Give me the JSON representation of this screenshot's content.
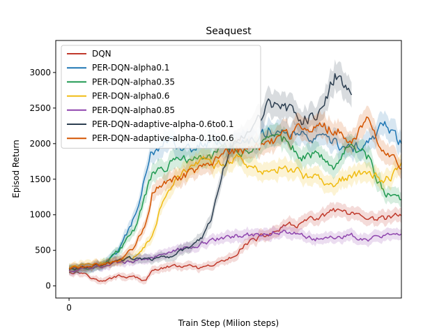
{
  "chart_data": {
    "type": "line",
    "title": "Seaquest",
    "xlabel": "Train Step (Milion steps)",
    "ylabel": "Episod Return",
    "xlim": [
      -4,
      100
    ],
    "ylim": [
      -170,
      3450
    ],
    "x_ticks": [
      0
    ],
    "x_tick_labels": [
      "0"
    ],
    "y_ticks": [
      0,
      500,
      1000,
      1500,
      2000,
      2500,
      3000
    ],
    "y_tick_labels": [
      "0",
      "500",
      "1000",
      "1500",
      "2000",
      "2500",
      "3000"
    ],
    "grid": false,
    "legend_position": "top-left",
    "shaded_band": true,
    "series": [
      {
        "name": "DQN",
        "color": "#c0392b",
        "x": [
          0,
          5,
          7,
          10,
          15,
          20,
          23,
          25,
          30,
          35,
          40,
          45,
          50,
          52,
          55,
          60,
          65,
          70,
          75,
          80,
          85,
          90,
          95,
          100
        ],
        "y": [
          200,
          180,
          110,
          60,
          140,
          120,
          60,
          220,
          270,
          280,
          240,
          320,
          420,
          560,
          640,
          720,
          830,
          880,
          950,
          1050,
          1000,
          900,
          950,
          1000
        ]
      },
      {
        "name": "PER-DQN-alpha0.1",
        "color": "#1f77b4",
        "x": [
          0,
          5,
          10,
          15,
          20,
          23,
          25,
          30,
          35,
          40,
          45,
          50,
          55,
          60,
          65,
          70,
          75,
          80,
          85,
          90,
          95,
          100
        ],
        "y": [
          250,
          260,
          280,
          500,
          1000,
          1600,
          1900,
          2100,
          1900,
          2000,
          2050,
          1950,
          2050,
          2200,
          2150,
          2100,
          2050,
          2000,
          1900,
          2000,
          2300,
          2000
        ]
      },
      {
        "name": "PER-DQN-alpha0.35",
        "color": "#1e9950",
        "x": [
          0,
          5,
          10,
          15,
          20,
          23,
          25,
          30,
          35,
          40,
          45,
          50,
          55,
          60,
          65,
          70,
          75,
          80,
          85,
          90,
          95,
          100
        ],
        "y": [
          230,
          250,
          300,
          500,
          800,
          1300,
          1550,
          1700,
          1800,
          1750,
          1900,
          1950,
          1850,
          2000,
          2050,
          1800,
          1900,
          1700,
          2000,
          1800,
          1300,
          1200
        ]
      },
      {
        "name": "PER-DQN-alpha0.6",
        "color": "#f0bb10",
        "x": [
          0,
          5,
          10,
          15,
          20,
          25,
          28,
          30,
          35,
          40,
          45,
          50,
          55,
          60,
          65,
          70,
          75,
          80,
          85,
          90,
          95,
          100
        ],
        "y": [
          260,
          300,
          330,
          350,
          420,
          700,
          1200,
          1400,
          1600,
          1750,
          1700,
          1800,
          1650,
          1600,
          1700,
          1550,
          1500,
          1450,
          1550,
          1600,
          1450,
          1700
        ]
      },
      {
        "name": "PER-DQN-alpha0.85",
        "color": "#8e44ad",
        "x": [
          0,
          5,
          10,
          15,
          20,
          25,
          30,
          35,
          40,
          45,
          50,
          55,
          60,
          65,
          70,
          75,
          80,
          85,
          90,
          95,
          100
        ],
        "y": [
          220,
          240,
          280,
          330,
          350,
          400,
          480,
          540,
          600,
          660,
          700,
          720,
          750,
          760,
          720,
          660,
          700,
          720,
          650,
          700,
          690
        ]
      },
      {
        "name": "PER-DQN-adaptive-alpha-0.6to0.1",
        "color": "#2c3e50",
        "x": [
          0,
          5,
          10,
          15,
          20,
          25,
          30,
          35,
          40,
          43,
          46,
          50,
          55,
          60,
          65,
          70,
          75,
          78,
          80,
          85
        ],
        "y": [
          230,
          260,
          300,
          350,
          400,
          380,
          420,
          500,
          680,
          1000,
          1600,
          2050,
          2200,
          2500,
          2550,
          2350,
          2400,
          2700,
          2950,
          2650
        ]
      },
      {
        "name": "PER-DQN-adaptive-alpha-0.1to0.6",
        "color": "#d35400",
        "x": [
          0,
          5,
          10,
          15,
          20,
          23,
          25,
          30,
          35,
          40,
          45,
          50,
          55,
          60,
          65,
          70,
          75,
          80,
          85,
          90,
          95,
          100
        ],
        "y": [
          240,
          270,
          300,
          350,
          550,
          900,
          1300,
          1500,
          1550,
          1650,
          1800,
          1900,
          1950,
          2000,
          2100,
          2200,
          2250,
          2200,
          2050,
          2350,
          1800,
          1700
        ]
      }
    ]
  }
}
